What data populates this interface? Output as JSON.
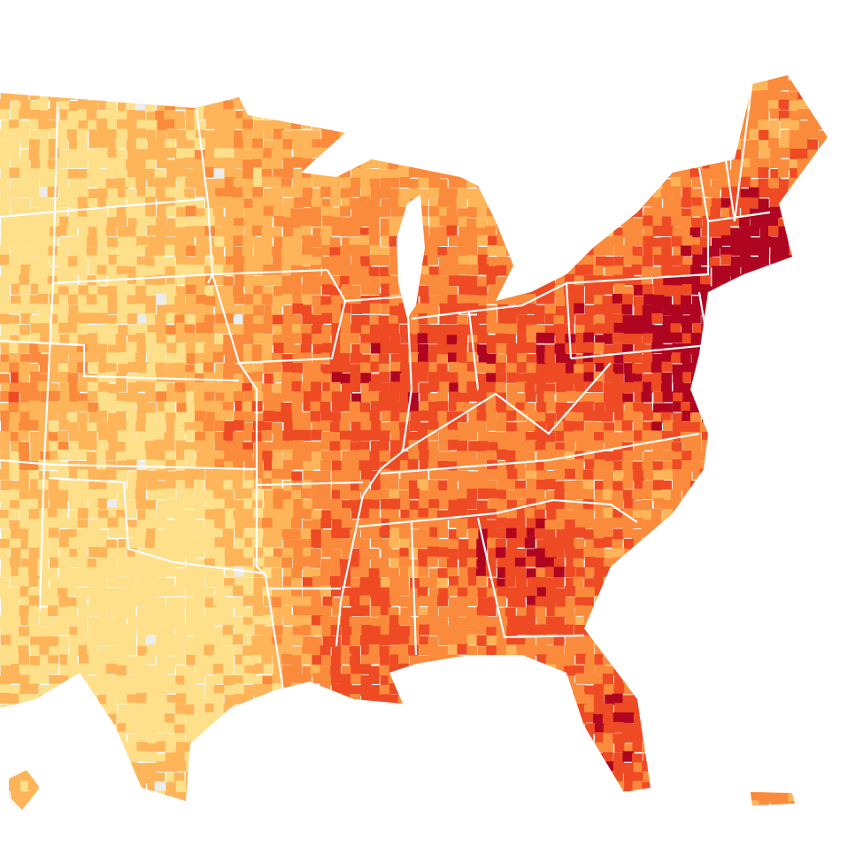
{
  "map": {
    "type": "choropleth",
    "unit": "county",
    "palette": [
      "#fedf8a",
      "#feb55a",
      "#fb8b3c",
      "#ee4b24",
      "#b00520"
    ],
    "no_data_color": "#ececec",
    "border_color": "#ffffff",
    "land_outline_color": "#ffffff",
    "water_color": "#ffffff"
  }
}
